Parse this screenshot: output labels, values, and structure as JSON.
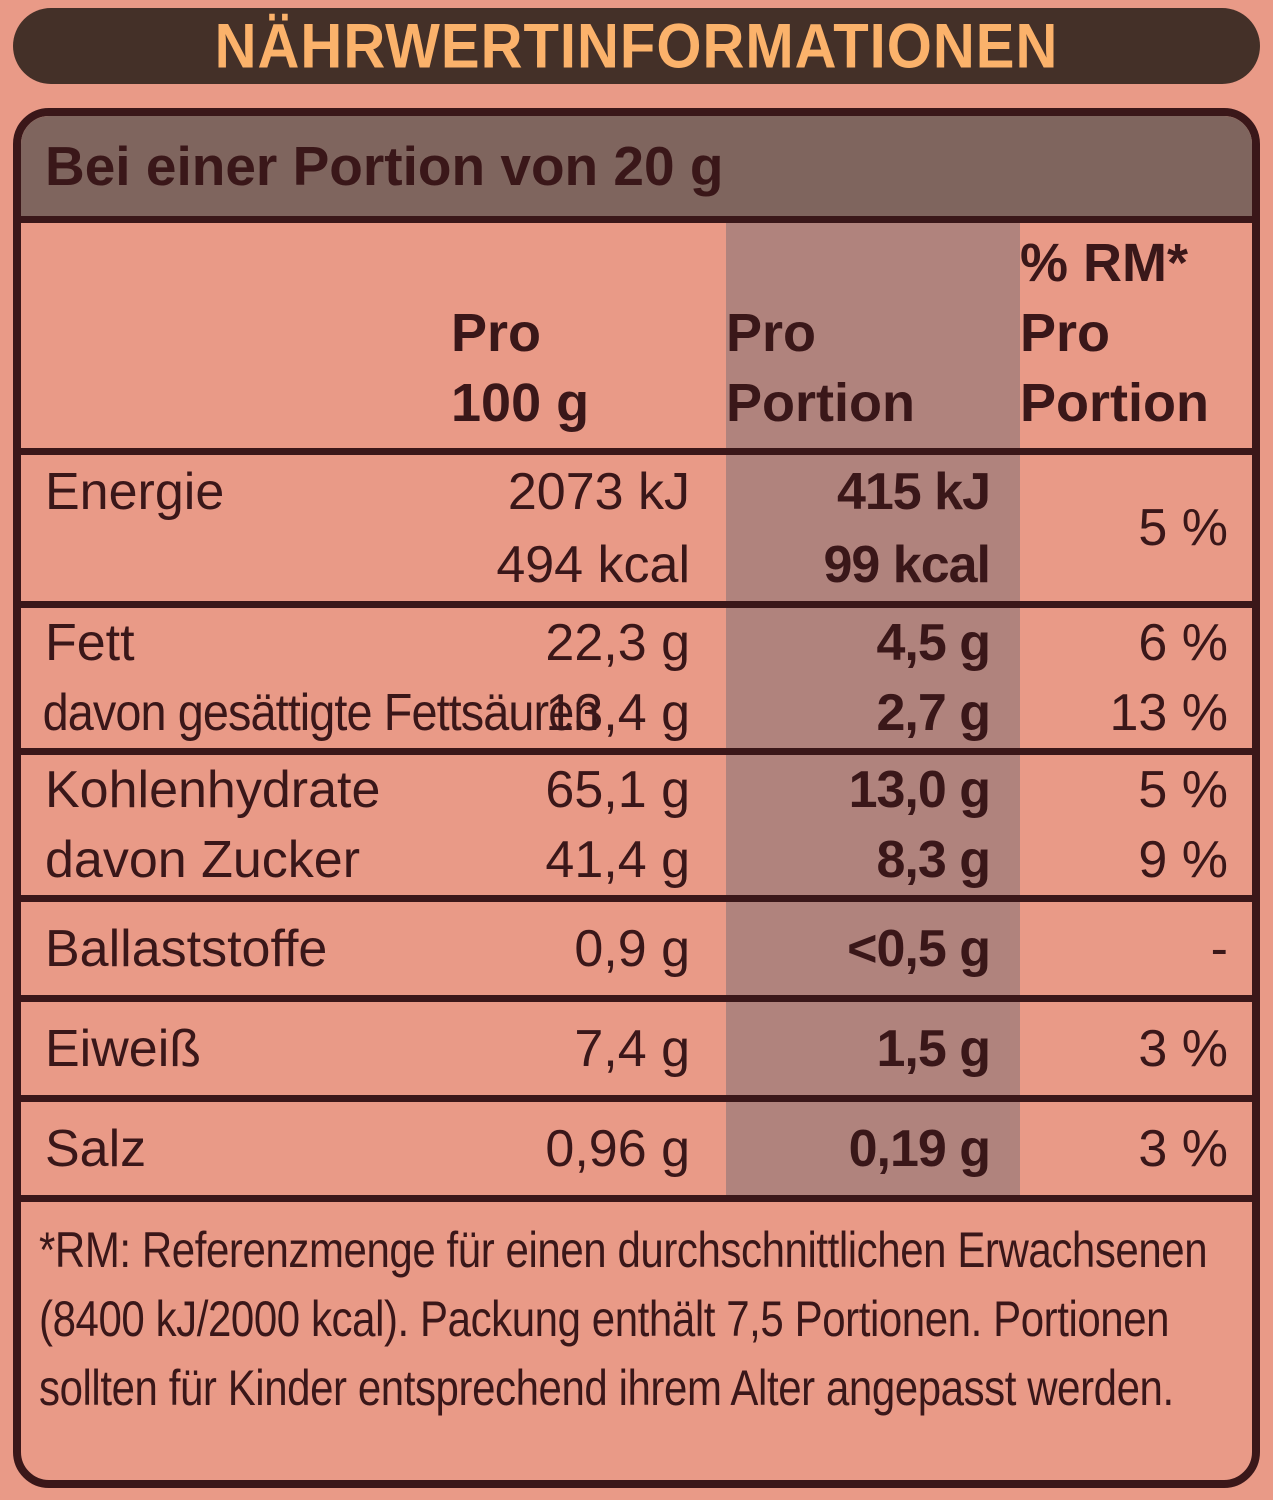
{
  "colors": {
    "salmon": "#E99A87",
    "dark": "#3A1719",
    "bar": "#443028",
    "orange": "#FBB26B",
    "gray": "#7F655E",
    "stripe": "#B0837D"
  },
  "title": "NÄHRWERTINFORMATIONEN",
  "serving_header": "Bei einer Portion von 20 g",
  "columns": {
    "per100": [
      "Pro",
      "100 g"
    ],
    "portion": [
      "Pro",
      "Portion"
    ],
    "rm": [
      "% RM*",
      "Pro",
      "Portion"
    ]
  },
  "rows": [
    {
      "label": "Energie",
      "per100": [
        "2073 kJ",
        "494 kcal"
      ],
      "portion": [
        "415 kJ",
        "99 kcal"
      ],
      "rm": [
        "5 %"
      ]
    },
    {
      "label": "Fett",
      "sublabel": "davon gesättigte Fettsäuren",
      "per100": [
        "22,3 g",
        "13,4 g"
      ],
      "portion": [
        "4,5 g",
        "2,7 g"
      ],
      "rm": [
        "6 %",
        "13 %"
      ]
    },
    {
      "label": "Kohlenhydrate",
      "sublabel": "davon Zucker",
      "per100": [
        "65,1 g",
        "41,4 g"
      ],
      "portion": [
        "13,0 g",
        "8,3 g"
      ],
      "rm": [
        "5 %",
        "9 %"
      ]
    },
    {
      "label": "Ballaststoffe",
      "per100": [
        "0,9 g"
      ],
      "portion": [
        "<0,5 g"
      ],
      "rm": [
        "-"
      ]
    },
    {
      "label": "Eiweiß",
      "per100": [
        "7,4 g"
      ],
      "portion": [
        "1,5 g"
      ],
      "rm": [
        "3 %"
      ]
    },
    {
      "label": "Salz",
      "per100": [
        "0,96 g"
      ],
      "portion": [
        "0,19 g"
      ],
      "rm": [
        "3 %"
      ]
    }
  ],
  "footnote_lines": [
    "*RM: Referenzmenge für einen durchschnittlichen Erwachsenen",
    "(8400 kJ/2000 kcal). Packung enthält 7,5 Portionen. Portionen",
    "sollten für Kinder entsprechend ihrem Alter angepasst werden."
  ]
}
